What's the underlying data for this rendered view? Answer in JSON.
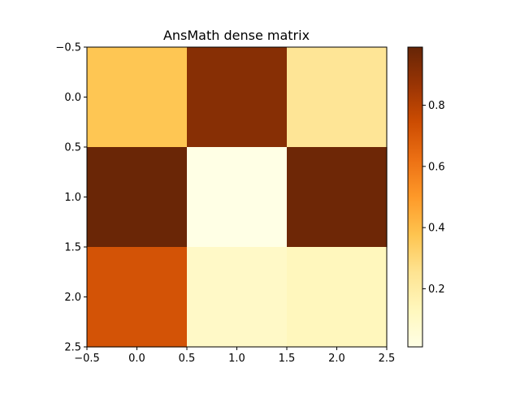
{
  "chart_data": {
    "type": "heatmap",
    "title": "AnsMath dense matrix",
    "xlabel": "",
    "ylabel": "",
    "x_ticks": [
      "−0.5",
      "0.0",
      "0.5",
      "1.0",
      "1.5",
      "2.0",
      "2.5"
    ],
    "y_ticks": [
      "−0.5",
      "0.0",
      "0.5",
      "1.0",
      "1.5",
      "2.0",
      "2.5"
    ],
    "xlim": [
      -0.5,
      2.5
    ],
    "ylim": [
      -0.5,
      2.5
    ],
    "y_inverted": true,
    "grid": false,
    "colormap": "YlOrBr",
    "colorbar": {
      "range": [
        0.01,
        0.99
      ],
      "ticks": [
        0.2,
        0.4,
        0.6,
        0.8
      ],
      "tick_labels": [
        "0.2",
        "0.4",
        "0.6",
        "0.8"
      ]
    },
    "rows": 3,
    "cols": 3,
    "values": [
      [
        0.37,
        0.91,
        0.24
      ],
      [
        0.98,
        0.01,
        0.97
      ],
      [
        0.72,
        0.1,
        0.13
      ]
    ]
  }
}
